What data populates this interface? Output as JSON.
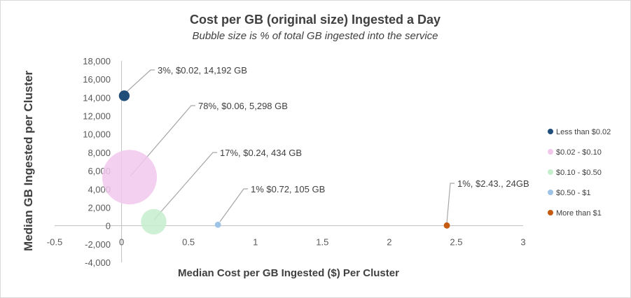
{
  "chart_data": {
    "type": "bubble",
    "title": "Cost per GB (original size) Ingested a Day",
    "subtitle": "Bubble size is % of total GB ingested into the service",
    "xlabel": "Median Cost per GB Ingested ($) Per Cluster",
    "ylabel": "Median GB Ingested per Cluster",
    "xlim": [
      -0.5,
      3
    ],
    "ylim": [
      -4000,
      18000
    ],
    "x_ticks": [
      "-0.5",
      "0",
      "0.5",
      "1",
      "1.5",
      "2",
      "2.5",
      "3"
    ],
    "y_ticks": [
      "-4,000",
      "-2,000",
      "0",
      "2,000",
      "4,000",
      "6,000",
      "8,000",
      "10,000",
      "12,000",
      "14,000",
      "16,000",
      "18,000"
    ],
    "grid": false,
    "legend_position": "right",
    "series": [
      {
        "name": "Less than $0.02",
        "color": "#1f4e79",
        "x": 0.02,
        "y": 14192,
        "size_pct": 3,
        "label": "3%, $0.02, 14,192 GB"
      },
      {
        "name": "$0.02 - $0.10",
        "color": "#f2c8ed",
        "x": 0.06,
        "y": 5298,
        "size_pct": 78,
        "label": "78%, $0.06, 5,298 GB"
      },
      {
        "name": "$0.10 - $0.50",
        "color": "#c6efce",
        "x": 0.24,
        "y": 434,
        "size_pct": 17,
        "label": "17%, $0.24, 434 GB"
      },
      {
        "name": "$0.50 - $1",
        "color": "#9dc3e6",
        "x": 0.72,
        "y": 105,
        "size_pct": 1,
        "label": "1% $0.72, 105 GB"
      },
      {
        "name": "More than $1",
        "color": "#c55a11",
        "x": 2.43,
        "y": 24,
        "size_pct": 1,
        "label": "1%, $2.43., 24GB"
      }
    ]
  }
}
